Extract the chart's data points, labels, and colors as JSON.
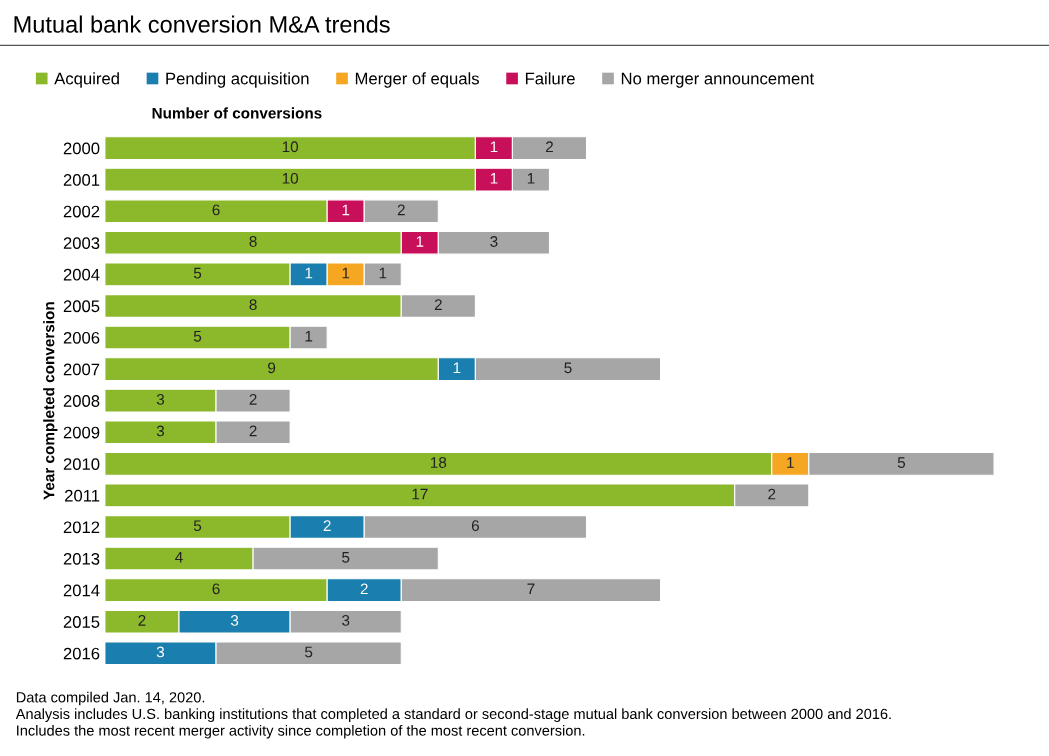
{
  "chart_data": {
    "type": "bar",
    "orientation": "horizontal",
    "stacked": true,
    "data_labels": true,
    "title": "Mutual bank conversion M&A trends",
    "xlabel": "Number of conversions",
    "ylabel": "Year completed conversion",
    "categories": [
      "2000",
      "2001",
      "2002",
      "2003",
      "2004",
      "2005",
      "2006",
      "2007",
      "2008",
      "2009",
      "2010",
      "2011",
      "2012",
      "2013",
      "2014",
      "2015",
      "2016"
    ],
    "series": [
      {
        "name": "Acquired",
        "color": "#8cb82b",
        "values": [
          10,
          10,
          6,
          8,
          5,
          8,
          5,
          9,
          3,
          3,
          18,
          17,
          5,
          4,
          6,
          2,
          null
        ]
      },
      {
        "name": "Pending acquisition",
        "color": "#1a7fae",
        "values": [
          null,
          null,
          null,
          null,
          1,
          null,
          null,
          1,
          null,
          null,
          null,
          null,
          2,
          null,
          2,
          3,
          3
        ]
      },
      {
        "name": "Merger of equals",
        "color": "#f5a623",
        "values": [
          null,
          null,
          null,
          null,
          1,
          null,
          null,
          null,
          null,
          null,
          1,
          null,
          null,
          null,
          null,
          null,
          null
        ]
      },
      {
        "name": "Failure",
        "color": "#c8105a",
        "values": [
          1,
          1,
          1,
          1,
          null,
          null,
          null,
          null,
          null,
          null,
          null,
          null,
          null,
          null,
          null,
          null,
          null
        ]
      },
      {
        "name": "No merger announcement",
        "color": "#a6a6a6",
        "values": [
          2,
          1,
          2,
          3,
          1,
          2,
          1,
          5,
          2,
          2,
          5,
          2,
          6,
          5,
          7,
          3,
          5
        ]
      }
    ],
    "tick_labels": "y",
    "grid": false,
    "legend": "top",
    "annotations": [
      "Data compiled Jan. 14, 2020.",
      "Analysis includes U.S. banking institutions that completed a standard or second-stage mutual bank conversion between 2000 and 2016.",
      "Includes the most recent merger activity since completion of the most recent conversion."
    ]
  }
}
